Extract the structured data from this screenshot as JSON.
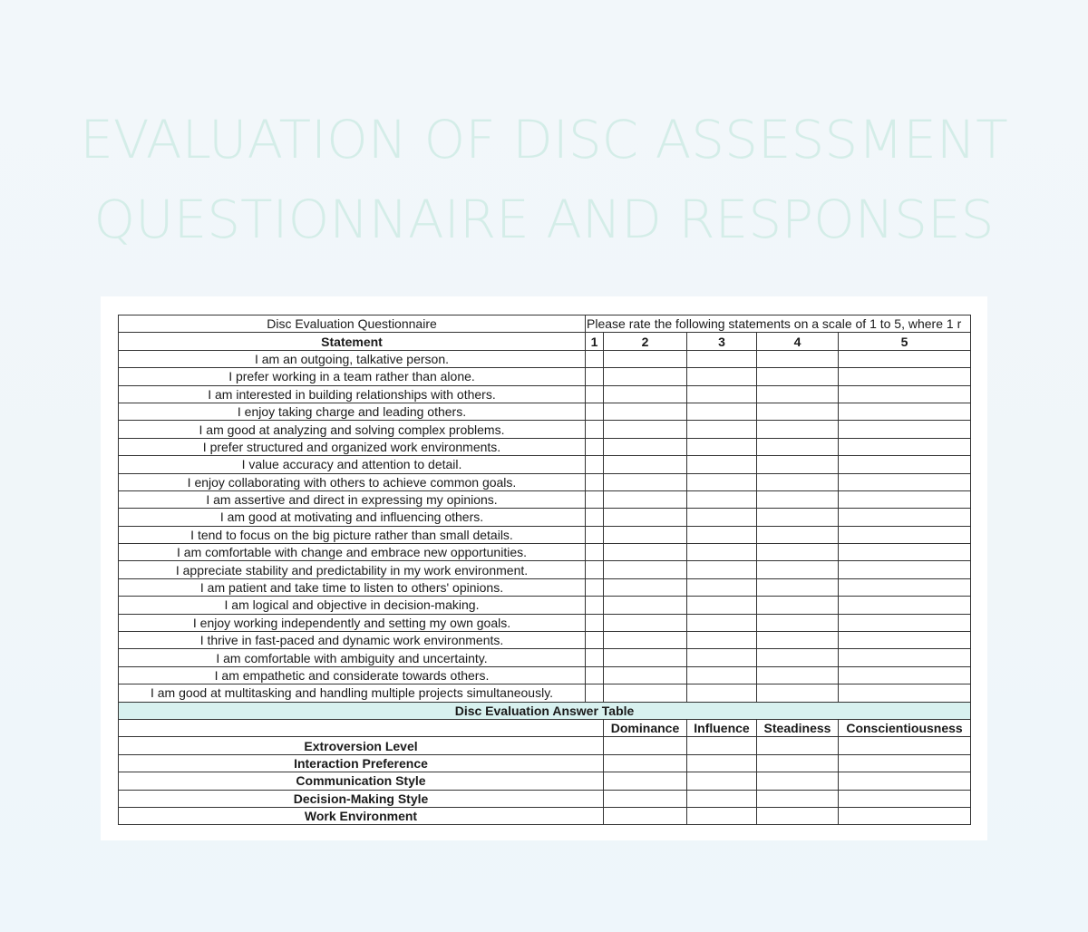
{
  "title_lines": [
    "EVALUATION OF DISC ASSESSMENT",
    "QUESTIONNAIRE AND RESPONSES"
  ],
  "questionnaire": {
    "name": "Disc Evaluation Questionnaire",
    "instruction": "Please rate the following statements on a scale of 1 to 5, where 1 r",
    "header": [
      "Statement",
      "1",
      "2",
      "3",
      "4",
      "5"
    ],
    "statements": [
      "I am an outgoing, talkative person.",
      "I prefer working in a team rather than alone.",
      "I am interested in building relationships with others.",
      "I enjoy taking charge and leading others.",
      "I am good at analyzing and solving complex problems.",
      "I prefer structured and organized work environments.",
      "I value accuracy and attention to detail.",
      "I enjoy collaborating with others to achieve common goals.",
      "I am assertive and direct in expressing my opinions.",
      "I am good at motivating and influencing others.",
      "I tend to focus on the big picture rather than small details.",
      "I am comfortable with change and embrace new opportunities.",
      "I appreciate stability and predictability in my work environment.",
      "I am patient and take time to listen to others' opinions.",
      "I am logical and objective in decision-making.",
      "I enjoy working independently and setting my own goals.",
      "I thrive in fast-paced and dynamic work environments.",
      "I am comfortable with ambiguity and uncertainty.",
      "I am empathetic and considerate towards others.",
      "I am good at multitasking and handling multiple projects simultaneously."
    ]
  },
  "answer_table": {
    "title": "Disc Evaluation Answer Table",
    "columns": [
      "Dominance",
      "Influence",
      "Steadiness",
      "Conscientiousness"
    ],
    "rows": [
      "Extroversion Level",
      "Interaction Preference",
      "Communication Style",
      "Decision-Making Style",
      "Work Environment"
    ]
  },
  "colors": {
    "title": "#d4ede8",
    "answer_header_fill": "#d8f1ef",
    "grid": "#333333"
  }
}
